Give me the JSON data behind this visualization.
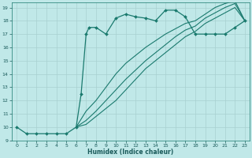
{
  "xlabel": "Humidex (Indice chaleur)",
  "bg_color": "#c0e8e8",
  "line_color": "#1a7a6e",
  "grid_color": "#a8d0d0",
  "xlim": [
    -0.5,
    23.5
  ],
  "ylim": [
    9,
    19.4
  ],
  "xticks": [
    0,
    1,
    2,
    3,
    4,
    5,
    6,
    7,
    8,
    9,
    10,
    11,
    12,
    13,
    14,
    15,
    16,
    17,
    18,
    19,
    20,
    21,
    22,
    23
  ],
  "yticks": [
    9,
    10,
    11,
    12,
    13,
    14,
    15,
    16,
    17,
    18,
    19
  ],
  "curve1_x": [
    0,
    1,
    2,
    3,
    4,
    5,
    6,
    6.5,
    7,
    7.3,
    8,
    9,
    10,
    11,
    12,
    13,
    14,
    15,
    16,
    17,
    18,
    19,
    20,
    21,
    22,
    23
  ],
  "curve1_y": [
    10,
    9.5,
    9.5,
    9.5,
    9.5,
    9.5,
    10.0,
    12.5,
    17.0,
    17.5,
    17.5,
    17.0,
    18.2,
    18.5,
    18.3,
    18.2,
    18.0,
    18.8,
    18.8,
    18.3,
    17.0,
    17.0,
    17.0,
    17.0,
    17.5,
    18.0
  ],
  "curve2_x": [
    6,
    7,
    8,
    9,
    10,
    11,
    12,
    13,
    14,
    15,
    16,
    17,
    18,
    19,
    20,
    21,
    22,
    23
  ],
  "curve2_y": [
    10.0,
    10.2,
    10.8,
    11.4,
    12.0,
    12.8,
    13.6,
    14.4,
    15.0,
    15.6,
    16.2,
    16.8,
    17.2,
    17.8,
    18.2,
    18.6,
    19.0,
    18.0
  ],
  "curve3_x": [
    6,
    7,
    8,
    9,
    10,
    11,
    12,
    13,
    14,
    15,
    16,
    17,
    18,
    19,
    20,
    21,
    22,
    23
  ],
  "curve3_y": [
    10.0,
    10.5,
    11.2,
    12.0,
    12.8,
    13.6,
    14.3,
    15.0,
    15.6,
    16.2,
    16.8,
    17.3,
    17.6,
    18.2,
    18.6,
    19.0,
    19.3,
    18.0
  ],
  "curve4_x": [
    6,
    7,
    8,
    9,
    10,
    11,
    12,
    13,
    14,
    15,
    16,
    17,
    18,
    19,
    20,
    21,
    22,
    23
  ],
  "curve4_y": [
    10.0,
    11.2,
    12.0,
    13.0,
    14.0,
    14.8,
    15.4,
    16.0,
    16.5,
    17.0,
    17.4,
    17.8,
    18.0,
    18.5,
    19.0,
    19.3,
    19.5,
    18.0
  ]
}
